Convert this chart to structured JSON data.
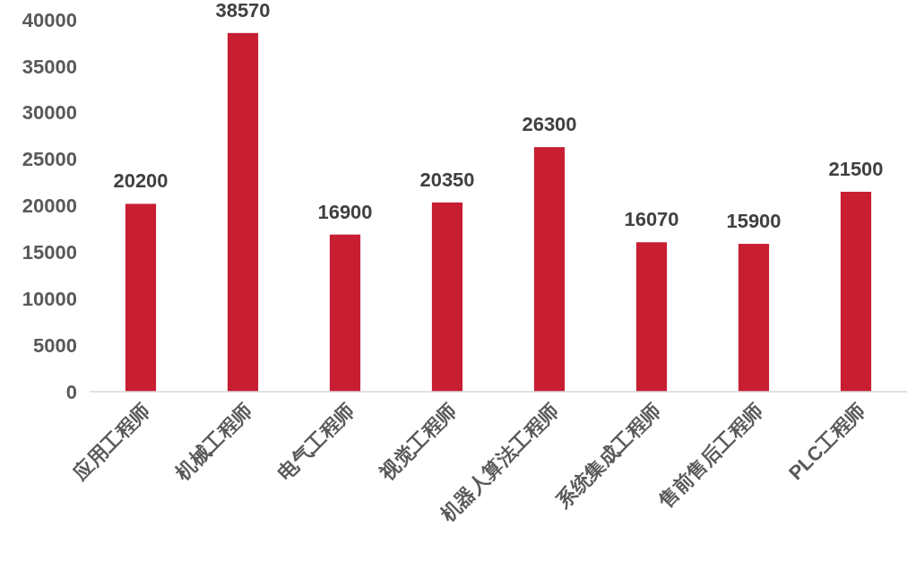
{
  "chart_data": {
    "type": "bar",
    "categories": [
      "应用工程师",
      "机械工程师",
      "电气工程师",
      "视觉工程师",
      "机器人算法工程师",
      "系统集成工程师",
      "售前售后工程师",
      "PLC工程师"
    ],
    "values": [
      20200,
      38570,
      16900,
      20350,
      26300,
      16070,
      15900,
      21500
    ],
    "color": "#c81e32",
    "ylim": [
      0,
      40000
    ],
    "yticks": [
      0,
      5000,
      10000,
      15000,
      20000,
      25000,
      30000,
      35000,
      40000
    ],
    "data_labels": true
  }
}
